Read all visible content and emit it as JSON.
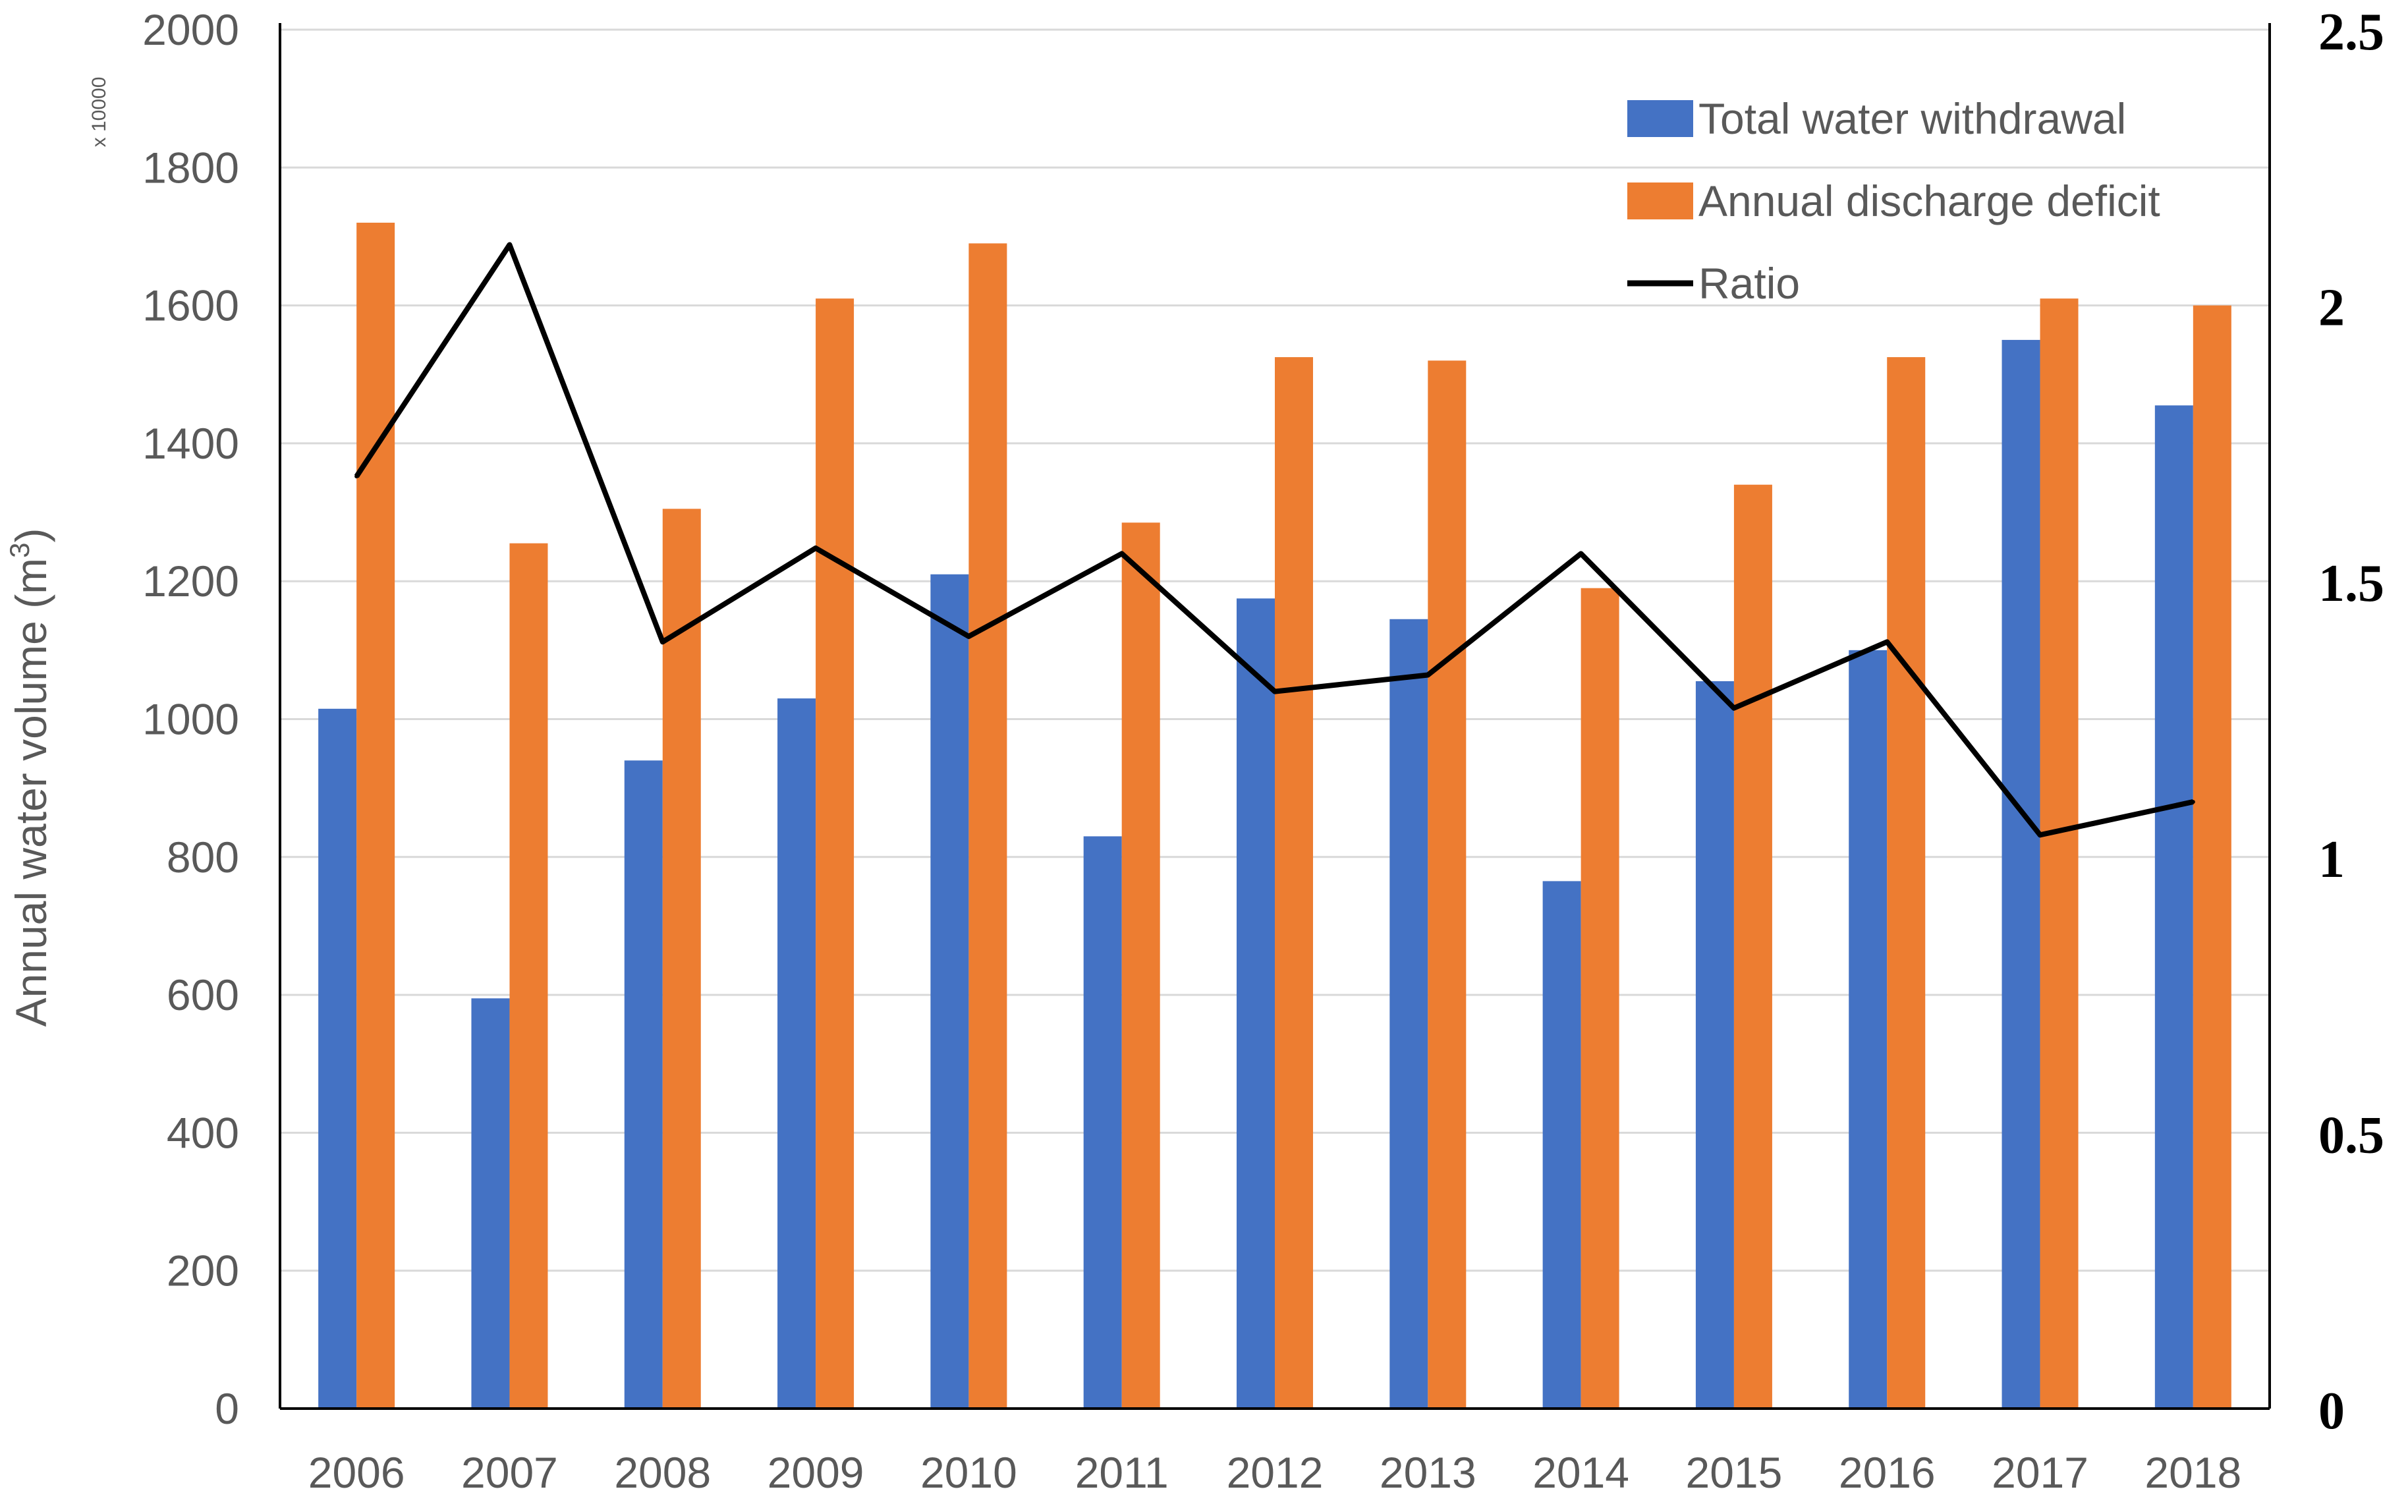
{
  "chart_data": {
    "type": "bar",
    "title": "",
    "xlabel": "",
    "ylabel": "Annual water volume (m",
    "ylabel_superscript": "3",
    "ylabel_suffix": ")",
    "left_axis_multiplier": "x 10000",
    "ylim": [
      0,
      2000
    ],
    "y2lim": [
      0,
      2.5
    ],
    "left_ticks": [
      "0",
      "200",
      "400",
      "600",
      "800",
      "1000",
      "1200",
      "1400",
      "1600",
      "1800",
      "2000"
    ],
    "right_ticks": [
      "0",
      "0.5",
      "1",
      "1.5",
      "2",
      "2.5"
    ],
    "grid": true,
    "legend_position": "top-right",
    "categories": [
      "2006",
      "2007",
      "2008",
      "2009",
      "2010",
      "2011",
      "2012",
      "2013",
      "2014",
      "2015",
      "2016",
      "2017",
      "2018"
    ],
    "series": [
      {
        "name": "Total water withdrawal",
        "type": "bar",
        "axis": "left",
        "color": "#4472C4",
        "values": [
          1015,
          595,
          940,
          1030,
          1210,
          830,
          1175,
          1145,
          765,
          1055,
          1100,
          1550,
          1455
        ]
      },
      {
        "name": "Annual discharge deficit",
        "type": "bar",
        "axis": "left",
        "color": "#ED7D31",
        "values": [
          1720,
          1255,
          1305,
          1610,
          1690,
          1285,
          1525,
          1520,
          1190,
          1340,
          1525,
          1610,
          1600
        ]
      },
      {
        "name": "Ratio",
        "type": "line",
        "axis": "right",
        "color": "#000000",
        "values": [
          1.69,
          2.11,
          1.39,
          1.56,
          1.4,
          1.55,
          1.3,
          1.33,
          1.55,
          1.27,
          1.39,
          1.04,
          1.1
        ]
      }
    ]
  }
}
